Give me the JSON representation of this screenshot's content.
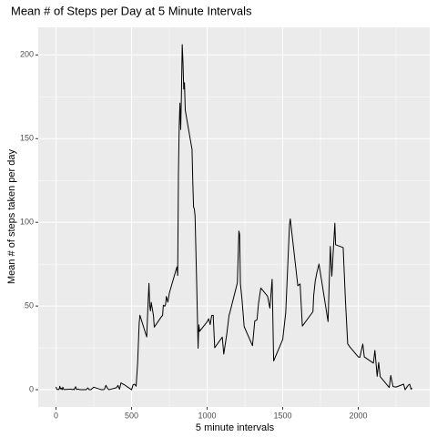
{
  "chart_data": {
    "type": "line",
    "title": "Mean # of Steps per Day at 5 Minute Intervals",
    "x_label": "5 minute intervals",
    "y_label": "Mean # of steps taken per day",
    "x": [
      0,
      5,
      10,
      15,
      20,
      25,
      30,
      35,
      40,
      45,
      50,
      55,
      100,
      105,
      110,
      115,
      120,
      125,
      130,
      135,
      140,
      145,
      150,
      155,
      200,
      210,
      220,
      230,
      250,
      300,
      310,
      320,
      330,
      340,
      350,
      400,
      410,
      420,
      430,
      440,
      450,
      500,
      510,
      520,
      530,
      540,
      550,
      555,
      600,
      610,
      615,
      620,
      625,
      630,
      645,
      650,
      700,
      705,
      710,
      720,
      725,
      730,
      740,
      750,
      800,
      805,
      810,
      815,
      820,
      825,
      830,
      835,
      840,
      845,
      850,
      855,
      900,
      905,
      910,
      915,
      920,
      930,
      940,
      945,
      950,
      1000,
      1010,
      1020,
      1030,
      1040,
      1050,
      1100,
      1110,
      1130,
      1145,
      1150,
      1200,
      1210,
      1215,
      1220,
      1230,
      1245,
      1300,
      1315,
      1330,
      1340,
      1355,
      1400,
      1415,
      1430,
      1440,
      1500,
      1520,
      1545,
      1550,
      1600,
      1615,
      1630,
      1700,
      1705,
      1715,
      1725,
      1740,
      1800,
      1815,
      1825,
      1845,
      1850,
      1900,
      1915,
      1930,
      1945,
      2000,
      2010,
      2030,
      2040,
      2100,
      2110,
      2125,
      2135,
      2145,
      2205,
      2215,
      2230,
      2250,
      2300,
      2310,
      2330,
      2340,
      2350,
      2355
    ],
    "series": [
      {
        "name": "mean steps",
        "color": "#000000",
        "values": [
          1.7,
          0.3,
          0.1,
          0.2,
          0.1,
          2.1,
          0.5,
          0.9,
          0,
          1.5,
          0.3,
          0.1,
          0.4,
          0,
          0.2,
          0.3,
          0,
          1.1,
          1.8,
          0.2,
          0.2,
          0.4,
          0.3,
          0,
          0,
          1.1,
          0,
          0,
          1.5,
          0,
          0,
          0.2,
          2.6,
          0.9,
          0,
          1.2,
          2.6,
          0.3,
          4.1,
          3.5,
          3.1,
          0,
          3,
          3.3,
          2.1,
          16,
          39.5,
          44.5,
          31.5,
          53.8,
          63.5,
          50,
          47.1,
          52.2,
          44.2,
          37.4,
          44,
          44.2,
          50.5,
          49.9,
          50.9,
          55.7,
          52.3,
          57.8,
          73.4,
          68.2,
          129.4,
          157.5,
          171.2,
          155.4,
          177.3,
          206.2,
          195.9,
          179.6,
          183.4,
          167,
          143.5,
          124,
          109.1,
          108.1,
          103.7,
          66.2,
          24.8,
          38.8,
          34.9,
          40.6,
          42.4,
          38.9,
          44.3,
          44.5,
          25.1,
          31.4,
          21.3,
          33.4,
          44.6,
          46,
          63.9,
          94.8,
          92.8,
          63.4,
          54.5,
          37.7,
          26.3,
          41,
          41.8,
          51.6,
          60.8,
          55.8,
          48.7,
          66,
          17.2,
          30,
          46,
          98.7,
          102.1,
          62.1,
          63.2,
          38,
          46.6,
          56.3,
          64.8,
          69.5,
          75.1,
          40.7,
          85.6,
          67.8,
          99.5,
          86.6,
          84.9,
          53.4,
          27.4,
          25.5,
          19.6,
          19.3,
          27.3,
          19.6,
          15.9,
          23.5,
          8,
          16.3,
          7.8,
          1.3,
          8.5,
          1.9,
          1.6,
          3.3,
          0,
          2.6,
          3.3,
          0.2,
          1.1
        ]
      }
    ],
    "xlim": [
      -117.75,
      2472.75
    ],
    "xticks": [
      0,
      500,
      1000,
      1500,
      2000
    ],
    "ylim": [
      -10.3,
      216.5
    ],
    "yticks": [
      0,
      50,
      100,
      150,
      200
    ],
    "grid": true
  }
}
